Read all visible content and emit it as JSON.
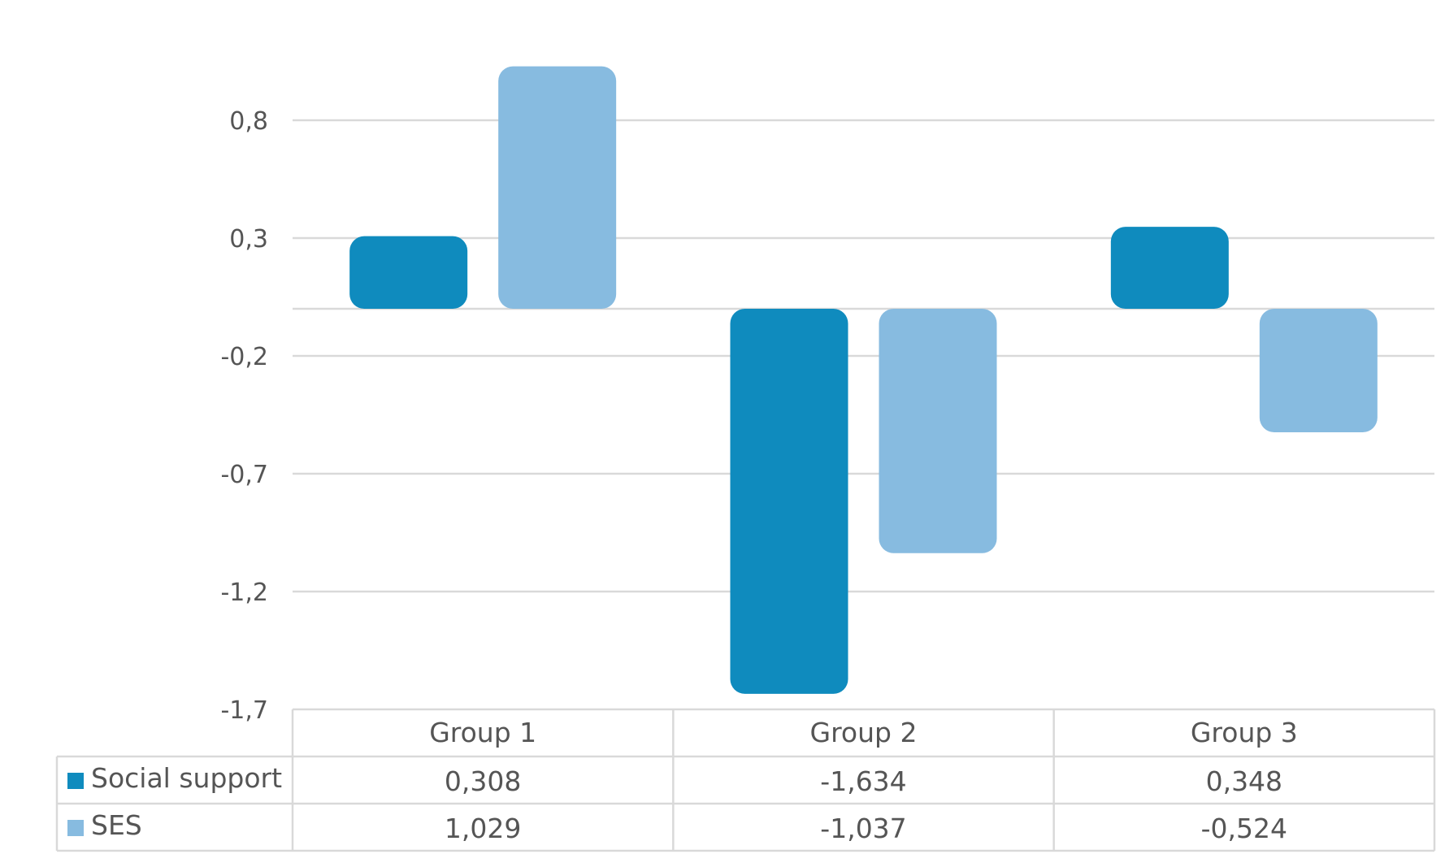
{
  "chart_data": {
    "type": "bar",
    "categories": [
      "Group 1",
      "Group 2",
      "Group 3"
    ],
    "series": [
      {
        "name": "Social support",
        "values": [
          0.308,
          -1.634,
          0.348
        ],
        "labels": [
          "0,308",
          "-1,634",
          "0,348"
        ],
        "color": "#0F8BBE"
      },
      {
        "name": "SES",
        "values": [
          1.029,
          -1.037,
          -0.524
        ],
        "labels": [
          "1,029",
          "-1,037",
          "-0,524"
        ],
        "color": "#87BBE0"
      }
    ],
    "y_ticks": [
      0.8,
      0.3,
      -0.2,
      -0.7,
      -1.2,
      -1.7
    ],
    "y_tick_labels": [
      "0,8",
      "0,3",
      "-0,2",
      "-0,7",
      "-1,2",
      "-1,7"
    ],
    "ylim": [
      -1.7,
      1.029
    ],
    "grid": true,
    "legend": "data-table",
    "title": "",
    "xlabel": "",
    "ylabel": ""
  }
}
